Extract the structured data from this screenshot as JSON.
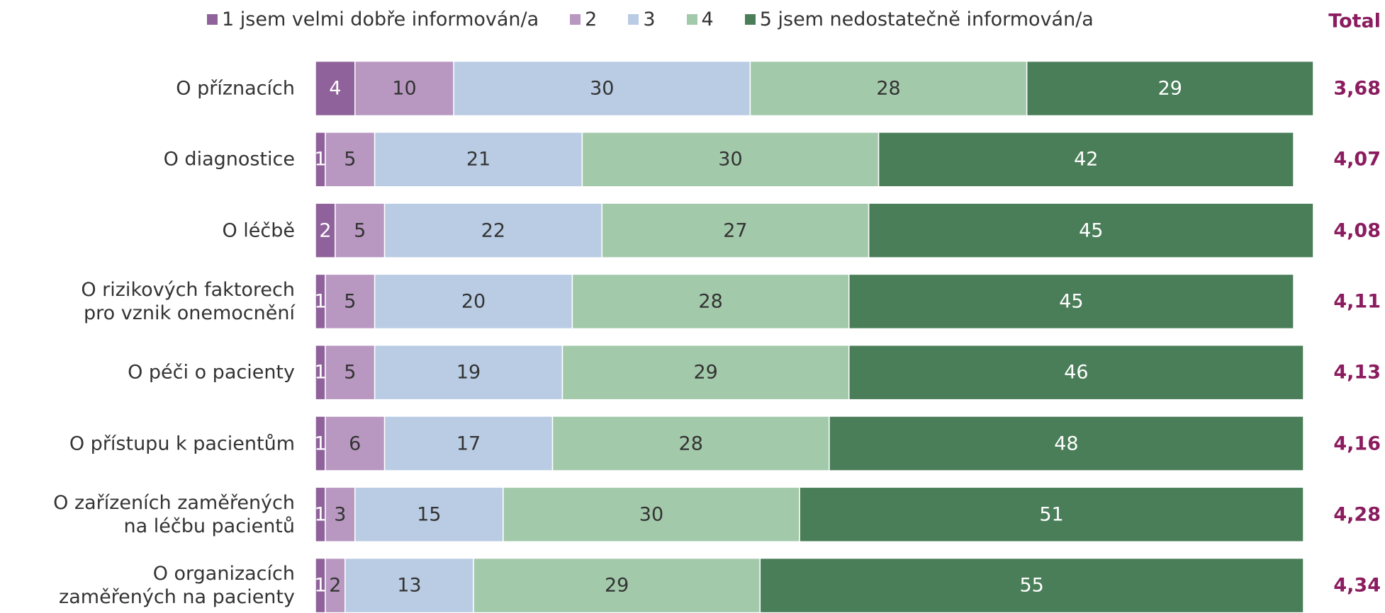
{
  "chart_data": {
    "type": "stacked_bar_horizontal",
    "categories": [
      "O příznacích",
      "O diagnostice",
      "O léčbě",
      "O rizikových faktorech\npro vznik onemocnění",
      "O péči o pacienty",
      "O přístupu k pacientům",
      "O zařízeních zaměřených\nna léčbu pacientů",
      "O organizacích\nzaměřených na pacienty"
    ],
    "series": [
      {
        "name": "1 jsem velmi dobře informován/a",
        "color": "#8f629b",
        "values": [
          4,
          1,
          2,
          1,
          1,
          1,
          1,
          1
        ]
      },
      {
        "name": "2",
        "color": "#b898c1",
        "values": [
          10,
          5,
          5,
          5,
          5,
          6,
          3,
          2
        ]
      },
      {
        "name": "3",
        "color": "#b9cce4",
        "values": [
          30,
          21,
          22,
          20,
          19,
          17,
          15,
          13
        ]
      },
      {
        "name": "4",
        "color": "#a3c9ab",
        "values": [
          28,
          30,
          27,
          28,
          29,
          28,
          30,
          29
        ]
      },
      {
        "name": "5 jsem nedostatečně informován/a",
        "color": "#4a7e59",
        "values": [
          29,
          42,
          45,
          45,
          46,
          48,
          51,
          55
        ]
      }
    ],
    "totals": {
      "label": "Total",
      "values": [
        3.68,
        4.07,
        4.08,
        4.11,
        4.13,
        4.16,
        4.28,
        4.34
      ],
      "value_labels": [
        "3,68",
        "4,07",
        "4,08",
        "4,11",
        "4,13",
        "4,16",
        "4,28",
        "4,34"
      ]
    }
  }
}
